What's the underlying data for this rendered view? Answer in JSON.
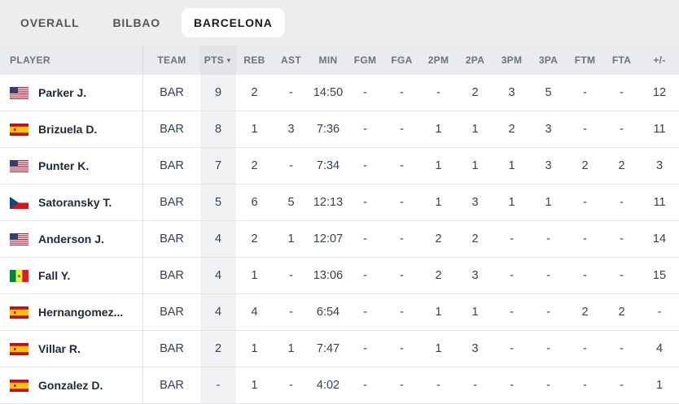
{
  "tabs": [
    {
      "label": "OVERALL",
      "active": false
    },
    {
      "label": "BILBAO",
      "active": false
    },
    {
      "label": "BARCELONA",
      "active": true
    }
  ],
  "columns": {
    "player": "PLAYER",
    "team": "TEAM",
    "pts": "PTS",
    "pts_sort": "▼",
    "reb": "REB",
    "ast": "AST",
    "min": "MIN",
    "fgm": "FGM",
    "fga": "FGA",
    "p2m": "2PM",
    "p2a": "2PA",
    "p3m": "3PM",
    "p3a": "3PA",
    "ftm": "FTM",
    "fta": "FTA",
    "pm": "+/-"
  },
  "rows": [
    {
      "flag": "usa",
      "name": "Parker J.",
      "team": "BAR",
      "pts": "9",
      "reb": "2",
      "ast": "-",
      "min": "14:50",
      "fgm": "-",
      "fga": "-",
      "p2m": "-",
      "p2a": "2",
      "p3m": "3",
      "p3a": "5",
      "ftm": "-",
      "fta": "-",
      "pm": "12"
    },
    {
      "flag": "spain",
      "name": "Brizuela D.",
      "team": "BAR",
      "pts": "8",
      "reb": "1",
      "ast": "3",
      "min": "7:36",
      "fgm": "-",
      "fga": "-",
      "p2m": "1",
      "p2a": "1",
      "p3m": "2",
      "p3a": "3",
      "ftm": "-",
      "fta": "-",
      "pm": "11"
    },
    {
      "flag": "usa",
      "name": "Punter K.",
      "team": "BAR",
      "pts": "7",
      "reb": "2",
      "ast": "-",
      "min": "7:34",
      "fgm": "-",
      "fga": "-",
      "p2m": "1",
      "p2a": "1",
      "p3m": "1",
      "p3a": "3",
      "ftm": "2",
      "fta": "2",
      "pm": "3"
    },
    {
      "flag": "czech",
      "name": "Satoransky T.",
      "team": "BAR",
      "pts": "5",
      "reb": "6",
      "ast": "5",
      "min": "12:13",
      "fgm": "-",
      "fga": "-",
      "p2m": "1",
      "p2a": "3",
      "p3m": "1",
      "p3a": "1",
      "ftm": "-",
      "fta": "-",
      "pm": "11"
    },
    {
      "flag": "usa",
      "name": "Anderson J.",
      "team": "BAR",
      "pts": "4",
      "reb": "2",
      "ast": "1",
      "min": "12:07",
      "fgm": "-",
      "fga": "-",
      "p2m": "2",
      "p2a": "2",
      "p3m": "-",
      "p3a": "-",
      "ftm": "-",
      "fta": "-",
      "pm": "14"
    },
    {
      "flag": "senegal",
      "name": "Fall Y.",
      "team": "BAR",
      "pts": "4",
      "reb": "1",
      "ast": "-",
      "min": "13:06",
      "fgm": "-",
      "fga": "-",
      "p2m": "2",
      "p2a": "3",
      "p3m": "-",
      "p3a": "-",
      "ftm": "-",
      "fta": "-",
      "pm": "15"
    },
    {
      "flag": "spain",
      "name": "Hernangomez...",
      "team": "BAR",
      "pts": "4",
      "reb": "4",
      "ast": "-",
      "min": "6:54",
      "fgm": "-",
      "fga": "-",
      "p2m": "1",
      "p2a": "1",
      "p3m": "-",
      "p3a": "-",
      "ftm": "2",
      "fta": "2",
      "pm": "-"
    },
    {
      "flag": "spain",
      "name": "Villar R.",
      "team": "BAR",
      "pts": "2",
      "reb": "1",
      "ast": "1",
      "min": "7:47",
      "fgm": "-",
      "fga": "-",
      "p2m": "1",
      "p2a": "3",
      "p3m": "-",
      "p3a": "-",
      "ftm": "-",
      "fta": "-",
      "pm": "4"
    },
    {
      "flag": "spain",
      "name": "Gonzalez D.",
      "team": "BAR",
      "pts": "-",
      "reb": "1",
      "ast": "-",
      "min": "4:02",
      "fgm": "-",
      "fga": "-",
      "p2m": "-",
      "p2a": "-",
      "p3m": "-",
      "p3a": "-",
      "ftm": "-",
      "fta": "-",
      "pm": "1"
    }
  ],
  "colors": {
    "tab_bar_bg": "#ededed",
    "header_bg": "#e9ebee",
    "sorted_column_bg": "#f1f2f4",
    "row_divider": "#e3e5e8"
  }
}
